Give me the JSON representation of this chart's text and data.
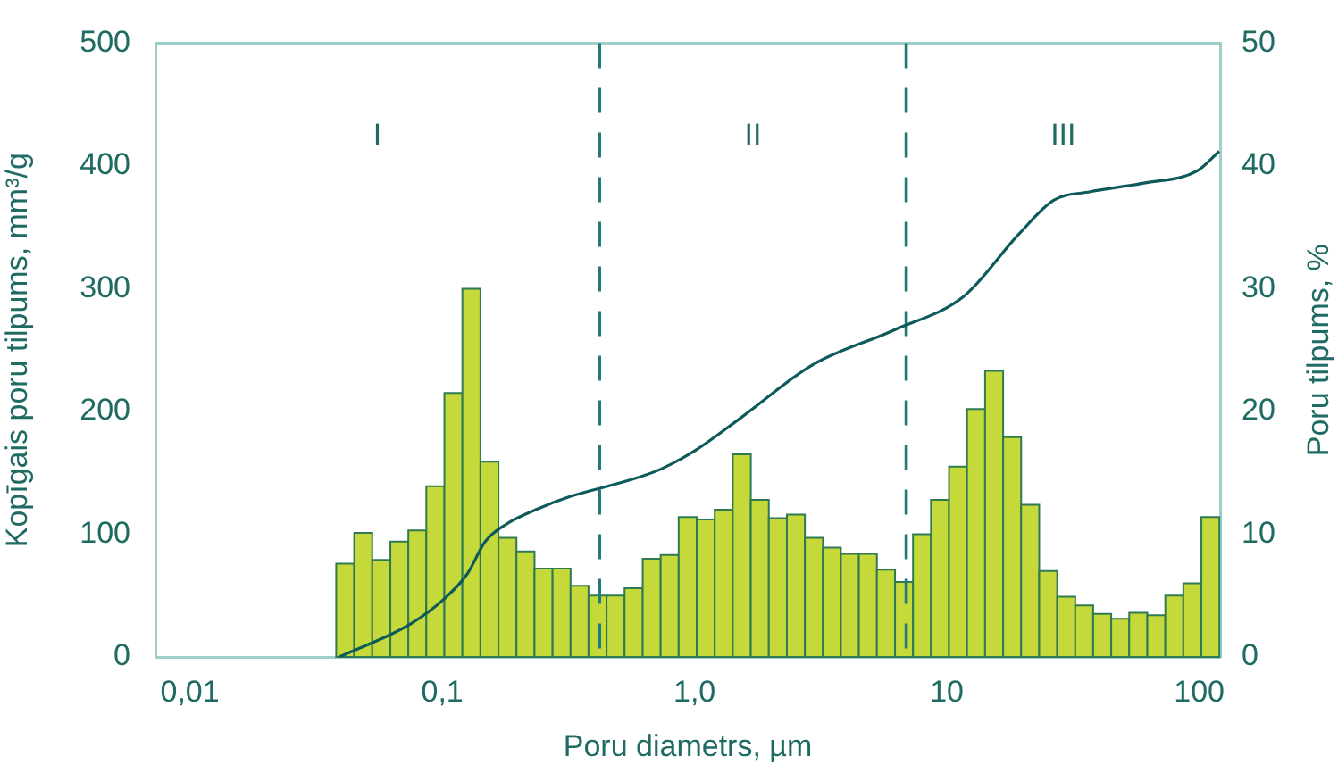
{
  "chart_data": {
    "type": "histogram",
    "xlabel": "Poru diametrs, µm",
    "ylabel": "Kopīgais poru tilpums, mm³/g",
    "y2label": "Poru tilpums, %",
    "log": "x",
    "grid": false,
    "legend": false,
    "xlim": [
      0.0073,
      121
    ],
    "xticks": [
      {
        "value": 0.01,
        "label": "0,01"
      },
      {
        "value": 0.1,
        "label": "0,1"
      },
      {
        "value": 1,
        "label": "1,0"
      },
      10,
      100
    ],
    "ylim": [
      0,
      500
    ],
    "yticks": [
      0,
      100,
      200,
      300,
      400,
      500
    ],
    "y2lim": [
      0,
      50
    ],
    "y2ticks": [
      0,
      10,
      20,
      30,
      40,
      50
    ],
    "series": [
      {
        "axis": "y2",
        "color": "#c5d93a",
        "bins": [
          0.038,
          0.0448,
          0.0528,
          0.0623,
          0.0734,
          0.0865,
          0.102,
          0.1202,
          0.1417,
          0.1671,
          0.1969,
          0.2322,
          0.2737,
          0.3226,
          0.38,
          0.448,
          0.528,
          0.623,
          0.734,
          0.865,
          1.02,
          1.202,
          1.417,
          1.671,
          1.969,
          2.322,
          2.737,
          3.226,
          3.8,
          4.48,
          5.28,
          6.23,
          7.34,
          8.65,
          10.2,
          12.02,
          14.17,
          16.71,
          19.69,
          23.22,
          27.37,
          32.26,
          38,
          44.8,
          52.8,
          62.3,
          73.4,
          86.5,
          102,
          120.2
        ],
        "values": [
          7.6,
          10.1,
          7.9,
          9.4,
          10.3,
          13.9,
          21.5,
          30,
          15.9,
          9.7,
          8.6,
          7.2,
          7.2,
          5.8,
          5.0,
          5.0,
          5.6,
          8.0,
          8.3,
          11.4,
          11.2,
          12.0,
          16.5,
          12.8,
          11.3,
          11.6,
          9.7,
          8.9,
          8.4,
          8.4,
          7.1,
          6.1,
          10.0,
          12.8,
          15.5,
          20.2,
          23.3,
          17.9,
          12.4,
          7.0,
          4.9,
          4.2,
          3.5,
          3.1,
          3.6,
          3.4,
          5.0,
          6.0,
          11.4
        ]
      },
      {
        "type": "line",
        "axis": "y",
        "color": "#0e5a5a",
        "marker": "none",
        "line_style": "solid",
        "x": [
          0.0391,
          0.075,
          0.104,
          0.126,
          0.148,
          0.179,
          0.235,
          0.325,
          0.531,
          0.735,
          1.02,
          1.53,
          2.94,
          6.12,
          11.7,
          19.2,
          26.5,
          37.0,
          60.3,
          98.2,
          120
        ],
        "values": [
          0,
          27,
          49,
          68,
          94,
          108,
          120,
          131,
          143,
          153,
          169,
          195,
          238,
          266,
          294,
          344,
          372,
          379,
          386,
          396,
          412
        ]
      }
    ],
    "ref_lines": [
      {
        "axis": "x",
        "value": 0.42,
        "line_style": "dashed",
        "color": "#1f7a78"
      },
      {
        "axis": "x",
        "value": 6.9,
        "line_style": "dashed",
        "color": "#1f7a78"
      }
    ],
    "annotations": [
      "I",
      "II",
      "III"
    ]
  }
}
